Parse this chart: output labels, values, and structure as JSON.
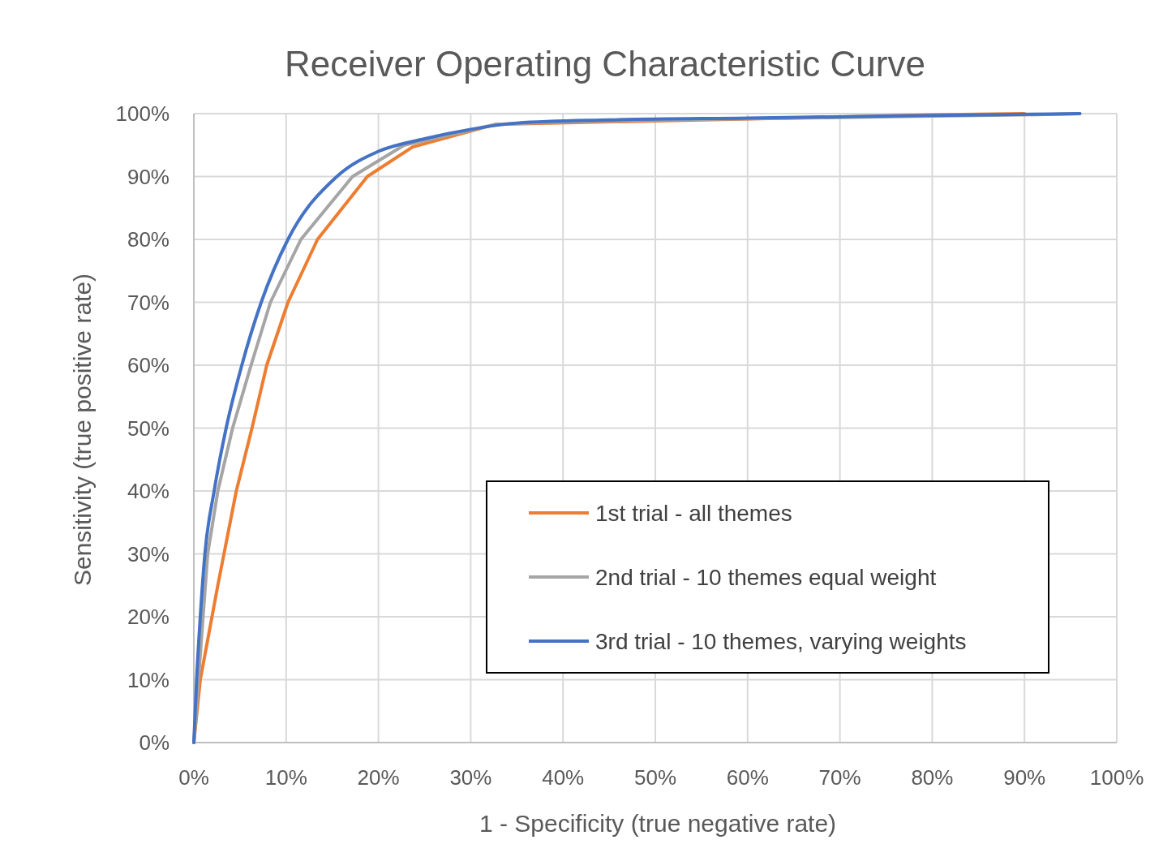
{
  "chart_data": {
    "type": "line",
    "title": "Receiver Operating Characteristic Curve",
    "xlabel": "1 - Specificity (true negative rate)",
    "ylabel": "Sensitivity (true positive rate)",
    "xlim": [
      0,
      100
    ],
    "ylim": [
      0,
      100
    ],
    "xticks": [
      {
        "value": 0,
        "label": "0%"
      },
      {
        "value": 10,
        "label": "10%"
      },
      {
        "value": 20,
        "label": "20%"
      },
      {
        "value": 30,
        "label": "30%"
      },
      {
        "value": 40,
        "label": "40%"
      },
      {
        "value": 50,
        "label": "50%"
      },
      {
        "value": 60,
        "label": "60%"
      },
      {
        "value": 70,
        "label": "70%"
      },
      {
        "value": 80,
        "label": "80%"
      },
      {
        "value": 90,
        "label": "90%"
      },
      {
        "value": 100,
        "label": "100%"
      }
    ],
    "yticks": [
      {
        "value": 0,
        "label": "0%"
      },
      {
        "value": 10,
        "label": "10%"
      },
      {
        "value": 20,
        "label": "20%"
      },
      {
        "value": 30,
        "label": "30%"
      },
      {
        "value": 40,
        "label": "40%"
      },
      {
        "value": 50,
        "label": "50%"
      },
      {
        "value": 60,
        "label": "60%"
      },
      {
        "value": 70,
        "label": "70%"
      },
      {
        "value": 80,
        "label": "80%"
      },
      {
        "value": 90,
        "label": "90%"
      },
      {
        "value": 100,
        "label": "100%"
      }
    ],
    "grid": true,
    "legend": "bottom right",
    "marker": "none",
    "line_style": "solid",
    "series": [
      {
        "name": "1st trial - all themes",
        "color": "#ed7d31",
        "x": [
          0,
          0.7,
          2.6,
          4.6,
          6.3,
          7.9,
          10.2,
          13.4,
          18.8,
          23.7,
          32.7,
          80,
          90
        ],
        "values": [
          0,
          10,
          25,
          40,
          50,
          60,
          70,
          80,
          90,
          94.7,
          98.3,
          99.8,
          100
        ]
      },
      {
        "name": "2nd trial - 10 themes equal weight",
        "color": "#a5a5a5",
        "x": [
          0,
          0.5,
          1.0,
          1.5,
          2.6,
          4.2,
          6.2,
          8.3,
          11.6,
          17.2,
          22.8,
          32.7,
          40,
          50,
          60,
          70,
          80,
          90,
          96
        ],
        "values": [
          0,
          10,
          20,
          30,
          40,
          50,
          60,
          70,
          80,
          90,
          95,
          98.3,
          98.7,
          99,
          99.2,
          99.4,
          99.6,
          99.8,
          100
        ]
      },
      {
        "name": "3rd trial - 10 themes, varying weights",
        "color": "#4472c4",
        "x": [
          0,
          0.3,
          0.7,
          1.2,
          2.2,
          3.5,
          5.2,
          7.3,
          10.2,
          15.5,
          20,
          25,
          30,
          35,
          45,
          60,
          75,
          96
        ],
        "values": [
          0,
          10,
          20,
          30,
          40,
          50,
          60,
          70,
          80,
          90,
          94,
          96,
          97.5,
          98.5,
          99,
          99.3,
          99.6,
          100
        ]
      }
    ]
  }
}
